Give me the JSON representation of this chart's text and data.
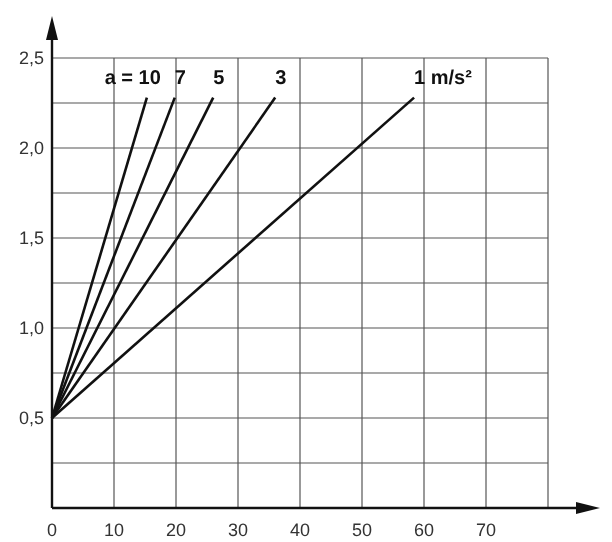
{
  "chart_data": {
    "type": "line",
    "xlim": [
      0,
      80
    ],
    "ylim": [
      0,
      2.5
    ],
    "xticks": [
      0,
      10,
      20,
      30,
      40,
      50,
      60,
      70,
      {
        "value": 80,
        "label": null
      }
    ],
    "yticks": [
      {
        "value": 0.25,
        "label": null
      },
      {
        "value": 0.5,
        "label": "0,5"
      },
      {
        "value": 0.75,
        "label": null
      },
      {
        "value": 1,
        "label": "1,0"
      },
      {
        "value": 1.25,
        "label": null
      },
      {
        "value": 1.5,
        "label": "1,5"
      },
      {
        "value": 1.75,
        "label": null
      },
      {
        "value": 2,
        "label": "2,0"
      },
      {
        "value": 2.25,
        "label": null
      },
      {
        "value": 2.5,
        "label": "2,5"
      }
    ],
    "grid": true,
    "line_style": "solid",
    "series": [
      {
        "name": "a = 10",
        "color": "#111111",
        "x": [
          0,
          15.3
        ],
        "values": [
          0.5,
          2.28
        ]
      },
      {
        "name": "7",
        "color": "#111111",
        "x": [
          0,
          19.8
        ],
        "values": [
          0.5,
          2.28
        ]
      },
      {
        "name": "5",
        "color": "#111111",
        "x": [
          0,
          26
        ],
        "values": [
          0.5,
          2.28
        ]
      },
      {
        "name": "3",
        "color": "#111111",
        "x": [
          0,
          36
        ],
        "values": [
          0.5,
          2.28
        ]
      },
      {
        "name": "1 m/s²",
        "color": "#111111",
        "x": [
          0,
          58.4
        ],
        "values": [
          0.5,
          2.28
        ]
      }
    ]
  }
}
